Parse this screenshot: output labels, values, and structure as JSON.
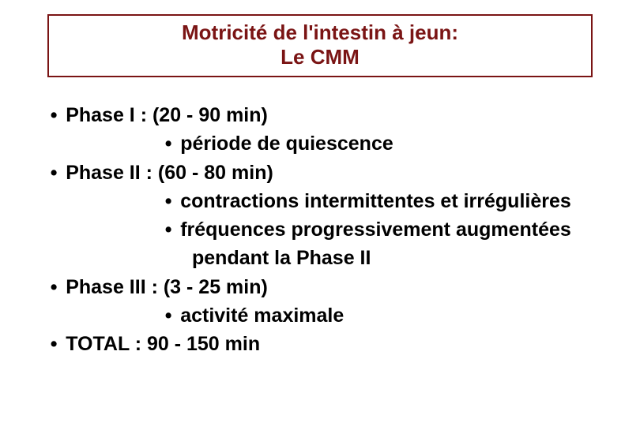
{
  "title": {
    "line1": "Motricité de l'intestin à jeun:",
    "line2": "Le CMM",
    "border_color": "#7a1414",
    "text_color": "#7a1414",
    "fontsize": 26
  },
  "body": {
    "fontsize": 25,
    "text_color": "#000000",
    "lines": [
      {
        "level": 1,
        "text": "Phase I   : (20 - 90 min)"
      },
      {
        "level": 2,
        "text": " période de quiescence"
      },
      {
        "level": 1,
        "text": "Phase II  : (60 - 80 min)"
      },
      {
        "level": 2,
        "text": "contractions intermittentes et irrégulières"
      },
      {
        "level": 2,
        "text": "fréquences progressivement augmentées"
      },
      {
        "level": 3,
        "text": "pendant la Phase II"
      },
      {
        "level": 1,
        "text": "Phase III : (3 - 25 min)"
      },
      {
        "level": 2,
        "text": "activité maximale"
      },
      {
        "level": 1,
        "text": "TOTAL   : 90 - 150 min"
      }
    ]
  },
  "background_color": "#ffffff"
}
